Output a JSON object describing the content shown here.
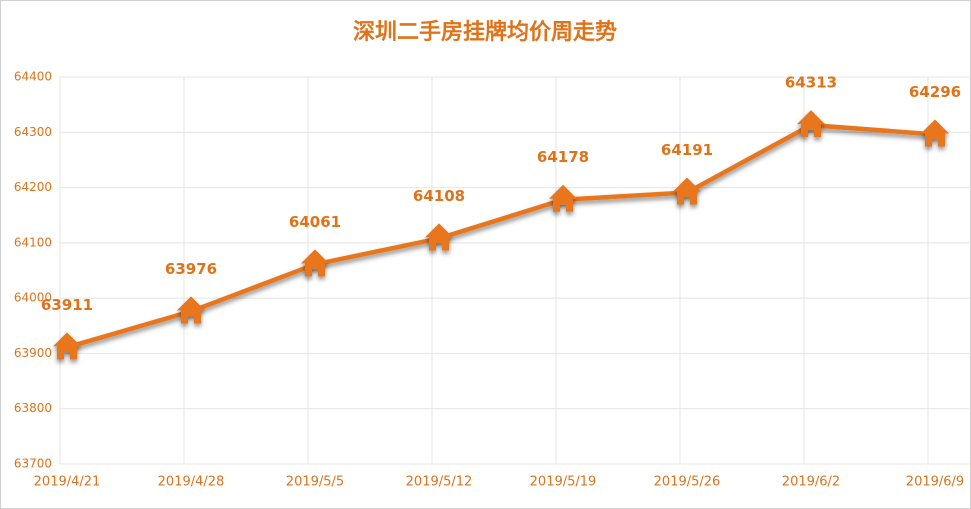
{
  "chart_data": {
    "type": "line",
    "title": "深圳二手房挂牌均价周走势",
    "categories": [
      "2019/4/21",
      "2019/4/28",
      "2019/5/5",
      "2019/5/12",
      "2019/5/19",
      "2019/5/26",
      "2019/6/2",
      "2019/6/9"
    ],
    "series": [
      {
        "name": "深圳二手房挂牌均价",
        "color": "#e8761e",
        "values": [
          63911,
          63976,
          64061,
          64108,
          64178,
          64191,
          64313,
          64296
        ]
      }
    ],
    "ylim": [
      63700,
      64400
    ],
    "yticks": [
      63700,
      63800,
      63900,
      64000,
      64100,
      64200,
      64300,
      64400
    ],
    "grid": true
  }
}
